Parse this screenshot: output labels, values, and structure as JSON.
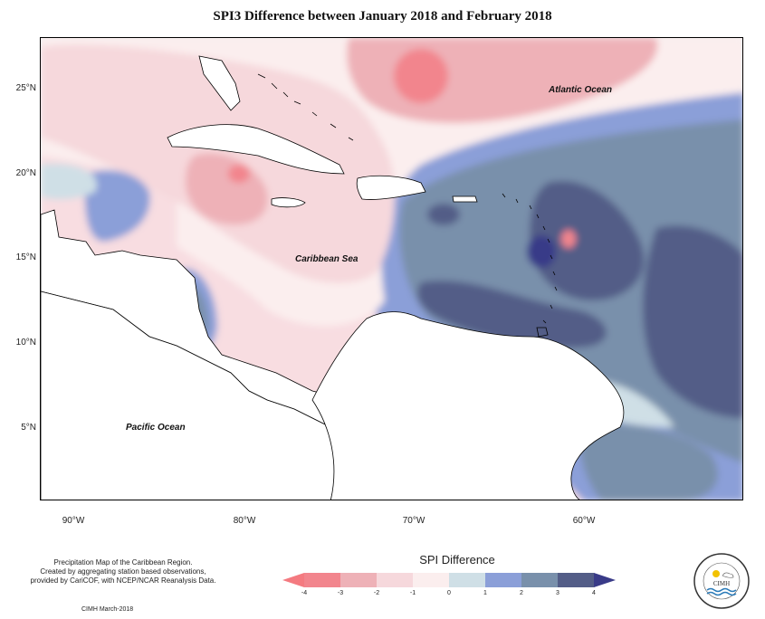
{
  "title": "SPI3 Difference between January 2018 and February 2018",
  "y_ticks": [
    "25°N",
    "20°N",
    "15°N",
    "10°N",
    "5°N"
  ],
  "x_ticks": [
    "90°W",
    "80°W",
    "70°W",
    "60°W"
  ],
  "labels": {
    "atlantic": "Atlantic Ocean",
    "caribbean": "Caribbean Sea",
    "pacific": "Pacific Ocean"
  },
  "credit_lines": [
    "Precipitation Map of the Caribbean Region.",
    "Created by aggregating station based observations,",
    "provided by CariCOF, with NCEP/NCAR Reanalysis Data."
  ],
  "date_note": "CIMH March-2018",
  "legend": {
    "title": "SPI Difference",
    "ticks": [
      "-4",
      "-3",
      "-2",
      "-1",
      "0",
      "1",
      "2",
      "3",
      "4"
    ],
    "colors": [
      "#f2858d",
      "#eeb1b7",
      "#f6d8dc",
      "#fbeeee",
      "#cfdfe6",
      "#8b9fd8",
      "#7990ab",
      "#535d87"
    ],
    "end_low": "#f47a80",
    "end_high": "#393b88"
  },
  "logo": {
    "text": "CIMH"
  }
}
